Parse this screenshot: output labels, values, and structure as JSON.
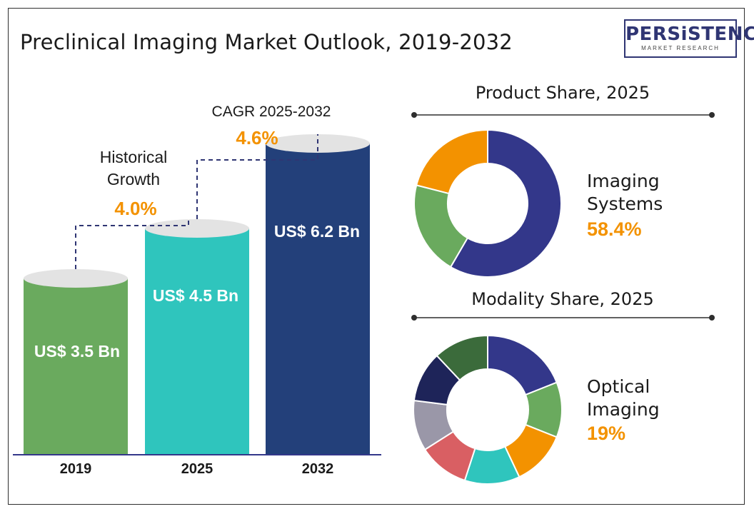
{
  "header": {
    "title": "Preclinical Imaging Market Outlook, 2019-2032",
    "logo_main": "PERSiSTENCE",
    "logo_sub": "MARKET RESEARCH"
  },
  "colors": {
    "accent": "#f39200",
    "bar_2019": "#6aaa5e",
    "bar_2025": "#2fc5bd",
    "bar_2032": "#23407a",
    "cap": "#e3e3e3",
    "connector": "#2f3573"
  },
  "annotations": {
    "historical_label": "Historical Growth",
    "historical_value": "4.0%",
    "cagr_label": "CAGR 2025-2032",
    "cagr_value": "4.6%"
  },
  "chart_data": [
    {
      "type": "bar",
      "title": "Preclinical Imaging Market Outlook, 2019-2032",
      "categories": [
        "2019",
        "2025",
        "2032"
      ],
      "values": [
        3.5,
        4.5,
        6.2
      ],
      "labels": [
        "US$ 3.5 Bn",
        "US$ 4.5 Bn",
        "US$ 6.2 Bn"
      ],
      "unit": "US$ Bn"
    },
    {
      "type": "pie",
      "title": "Product Share, 2025",
      "highlight_label": "Imaging Systems",
      "highlight_value": "58.4%",
      "slices": [
        {
          "value": 58.4,
          "color": "#33378a"
        },
        {
          "value": 20.6,
          "color": "#6aaa5e"
        },
        {
          "value": 21.0,
          "color": "#f39200"
        }
      ]
    },
    {
      "type": "pie",
      "title": "Modality Share, 2025",
      "highlight_label": "Optical Imaging",
      "highlight_value": "19%",
      "slices": [
        {
          "value": 19,
          "color": "#33378a"
        },
        {
          "value": 12,
          "color": "#6aaa5e"
        },
        {
          "value": 12,
          "color": "#f39200"
        },
        {
          "value": 12,
          "color": "#2fc5bd"
        },
        {
          "value": 11,
          "color": "#d95f63"
        },
        {
          "value": 11,
          "color": "#9a97a8"
        },
        {
          "value": 11,
          "color": "#1e2459"
        },
        {
          "value": 12,
          "color": "#3b6b3b"
        }
      ]
    }
  ]
}
